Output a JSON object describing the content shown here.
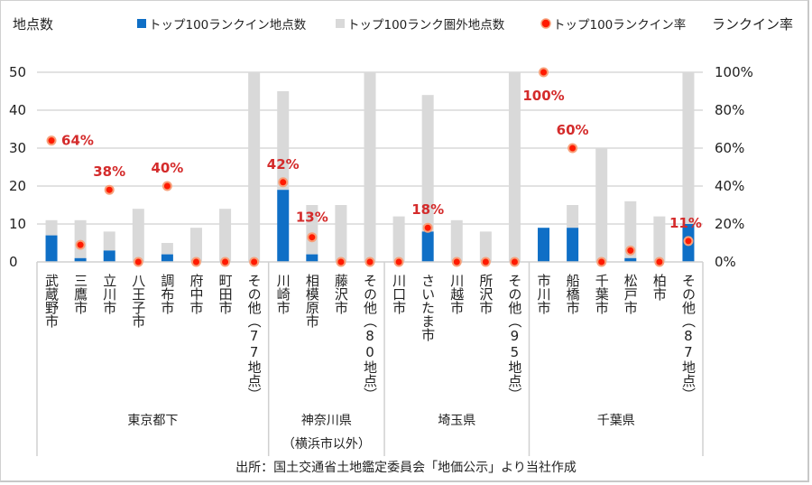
{
  "chart_data": {
    "type": "bar",
    "subtype": "stacked-bar-with-rate-markers",
    "ylabel_left": "地点数",
    "ylabel_right": "ランクイン率",
    "ylim_left": [
      0,
      50
    ],
    "ylim_right": [
      0,
      100
    ],
    "yticks_left": [
      "0",
      "10",
      "20",
      "30",
      "40",
      "50"
    ],
    "yticks_right": [
      "0%",
      "20%",
      "40%",
      "60%",
      "80%",
      "100%"
    ],
    "grid": true,
    "legend_position": "top",
    "legend": [
      {
        "name": "トップ100ランクイン地点数",
        "color": "#0f6fc6",
        "marker": "square"
      },
      {
        "name": "トップ100ランク圏外地点数",
        "color": "#d9d9d9",
        "marker": "square"
      },
      {
        "name": "トップ100ランクイン率",
        "color": "#ff1a00",
        "marker": "circle"
      }
    ],
    "categories": [
      "武蔵野市",
      "三鷹市",
      "立川市",
      "八王子市",
      "調布市",
      "府中市",
      "町田市",
      "その他（77地点）",
      "川崎市",
      "相模原市",
      "藤沢市",
      "その他（80地点）",
      "川口市",
      "さいたま市",
      "川越市",
      "所沢市",
      "その他（95地点）",
      "市川市",
      "船橋市",
      "千葉市",
      "松戸市",
      "柏市",
      "その他（87地点）"
    ],
    "groups": [
      {
        "name": "東京都下",
        "subname": "",
        "count": 8
      },
      {
        "name": "神奈川県",
        "subname": "（横浜市以外）",
        "count": 4
      },
      {
        "name": "埼玉県",
        "subname": "",
        "count": 5
      },
      {
        "name": "千葉県",
        "subname": "",
        "count": 6
      }
    ],
    "series": [
      {
        "name": "トップ100ランクイン地点数",
        "values": [
          7,
          1,
          3,
          0,
          2,
          0,
          0,
          0,
          19,
          2,
          0,
          0,
          0,
          8,
          0,
          0,
          0,
          9,
          9,
          0,
          1,
          0,
          10
        ]
      },
      {
        "name": "トップ100ランク圏外地点数",
        "values": [
          4,
          10,
          5,
          14,
          3,
          9,
          14,
          77,
          26,
          13,
          15,
          80,
          12,
          36,
          11,
          8,
          95,
          0,
          6,
          30,
          15,
          12,
          77
        ]
      },
      {
        "name": "トップ100ランクイン率",
        "axis": "right",
        "unit": "%",
        "values": [
          64,
          9,
          38,
          0,
          40,
          0,
          0,
          0,
          42,
          13,
          0,
          0,
          0,
          18,
          0,
          0,
          0,
          100,
          60,
          0,
          6,
          0,
          11
        ]
      }
    ],
    "data_labels": [
      {
        "category": "武蔵野市",
        "text": "64%"
      },
      {
        "category": "立川市",
        "text": "38%"
      },
      {
        "category": "調布市",
        "text": "40%"
      },
      {
        "category": "川崎市",
        "text": "42%"
      },
      {
        "category": "相模原市",
        "text": "13%"
      },
      {
        "category": "さいたま市",
        "text": "18%"
      },
      {
        "category": "市川市",
        "text": "100%"
      },
      {
        "category": "船橋市",
        "text": "60%"
      },
      {
        "category": "その他（87地点）",
        "text": "11%"
      }
    ],
    "source": "出所：国土交通省土地鑑定委員会「地価公示」より当社作成"
  }
}
